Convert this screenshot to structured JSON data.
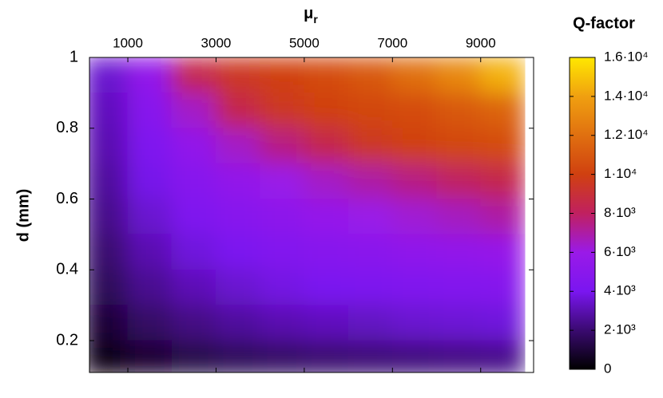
{
  "chart_data": {
    "type": "heatmap",
    "xlabel": "μ",
    "xlabel_subscript": "r",
    "ylabel": "d (mm)",
    "colorbar_label": "Q-factor",
    "x": [
      500,
      1500,
      2500,
      3500,
      4500,
      5500,
      6500,
      7500,
      8500,
      9500
    ],
    "y": [
      0.95,
      0.85,
      0.75,
      0.65,
      0.55,
      0.45,
      0.35,
      0.25,
      0.15
    ],
    "z": [
      [
        3500,
        5500,
        8500,
        9500,
        10000,
        10500,
        11000,
        12000,
        13000,
        14500
      ],
      [
        3200,
        4800,
        6500,
        8500,
        9500,
        10000,
        10300,
        10500,
        11000,
        11500
      ],
      [
        3000,
        4300,
        5500,
        6500,
        7500,
        8500,
        9500,
        10000,
        10300,
        10500
      ],
      [
        2700,
        3900,
        4800,
        5500,
        6000,
        6500,
        7000,
        7500,
        8000,
        8500
      ],
      [
        2400,
        3500,
        4300,
        4800,
        5200,
        5600,
        6000,
        6300,
        6600,
        7000
      ],
      [
        2000,
        3000,
        3700,
        4100,
        4500,
        4800,
        5000,
        5300,
        5500,
        5700
      ],
      [
        1600,
        2500,
        3100,
        3500,
        3800,
        4000,
        4200,
        4400,
        4500,
        4700
      ],
      [
        1000,
        1800,
        2300,
        2700,
        3000,
        3200,
        3300,
        3500,
        3600,
        3700
      ],
      [
        400,
        900,
        1300,
        1600,
        1800,
        2000,
        2100,
        2200,
        2300,
        2400
      ]
    ],
    "xlim": [
      130,
      10200
    ],
    "xticks": [
      1000,
      3000,
      5000,
      7000,
      9000
    ],
    "ylim": [
      0.11,
      1
    ],
    "yticks": [
      0.2,
      0.4,
      0.6,
      0.8,
      1
    ],
    "zlim": [
      0,
      16000
    ],
    "zticks": [
      0,
      {
        "value": 2000,
        "label": "2·10³"
      },
      {
        "value": 4000,
        "label": "4·10³"
      },
      {
        "value": 6000,
        "label": "6·10³"
      },
      {
        "value": 8000,
        "label": "8·10³"
      },
      {
        "value": 10000,
        "label": "1·10⁴"
      },
      {
        "value": 12000,
        "label": "1.2·10⁴"
      },
      {
        "value": 14000,
        "label": "1.4·10⁴"
      },
      {
        "value": 16000,
        "label": "1.6·10⁴"
      }
    ],
    "colormap": [
      "#000000",
      "#3a0a70",
      "#7a16f0",
      "#9a1ae8",
      "#c02060",
      "#d04010",
      "#e07010",
      "#f0a010",
      "#ffe800"
    ]
  }
}
